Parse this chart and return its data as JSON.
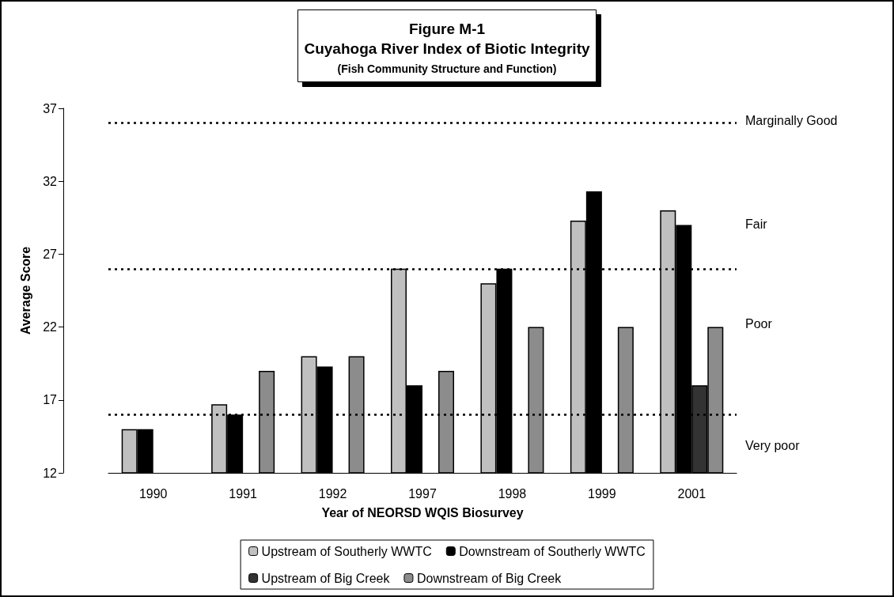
{
  "chart_data": {
    "type": "bar",
    "title": "Figure M-1\nCuyahoga River Index of Biotic Integrity",
    "subtitle": "(Fish Community Structure and Function)",
    "xlabel": "Year of NEORSD WQIS Biosurvey",
    "ylabel": "Average Score",
    "categories": [
      "1990",
      "1991",
      "1992",
      "1997",
      "1998",
      "1999",
      "2001"
    ],
    "series": [
      {
        "name": "Upstream of Southerly WWTC",
        "color": "#c0c0c0",
        "values": [
          15,
          16.7,
          20,
          26,
          25,
          29.3,
          30
        ]
      },
      {
        "name": "Downstream of Southerly WWTC",
        "color": "#000000",
        "values": [
          15,
          16,
          19.3,
          18,
          26,
          31.3,
          29
        ]
      },
      {
        "name": "Upstream of Big Creek",
        "color": "#333333",
        "values": [
          null,
          null,
          null,
          null,
          null,
          null,
          18
        ]
      },
      {
        "name": "Downstream of Big Creek",
        "color": "#8c8c8c",
        "values": [
          null,
          19,
          20,
          19,
          22,
          22,
          22
        ]
      }
    ],
    "ylim": [
      12,
      37
    ],
    "yticks": [
      12,
      17,
      22,
      27,
      32,
      37
    ],
    "grid": false,
    "legend": "bottom",
    "ref_lines": [
      {
        "axis": "y",
        "value": 36,
        "line_style": "dotted"
      },
      {
        "axis": "y",
        "value": 26,
        "line_style": "dotted"
      },
      {
        "axis": "y",
        "value": 16,
        "line_style": "dotted"
      }
    ],
    "annotations": [
      "Marginally Good",
      "Fair",
      "Poor",
      "Very poor"
    ]
  }
}
